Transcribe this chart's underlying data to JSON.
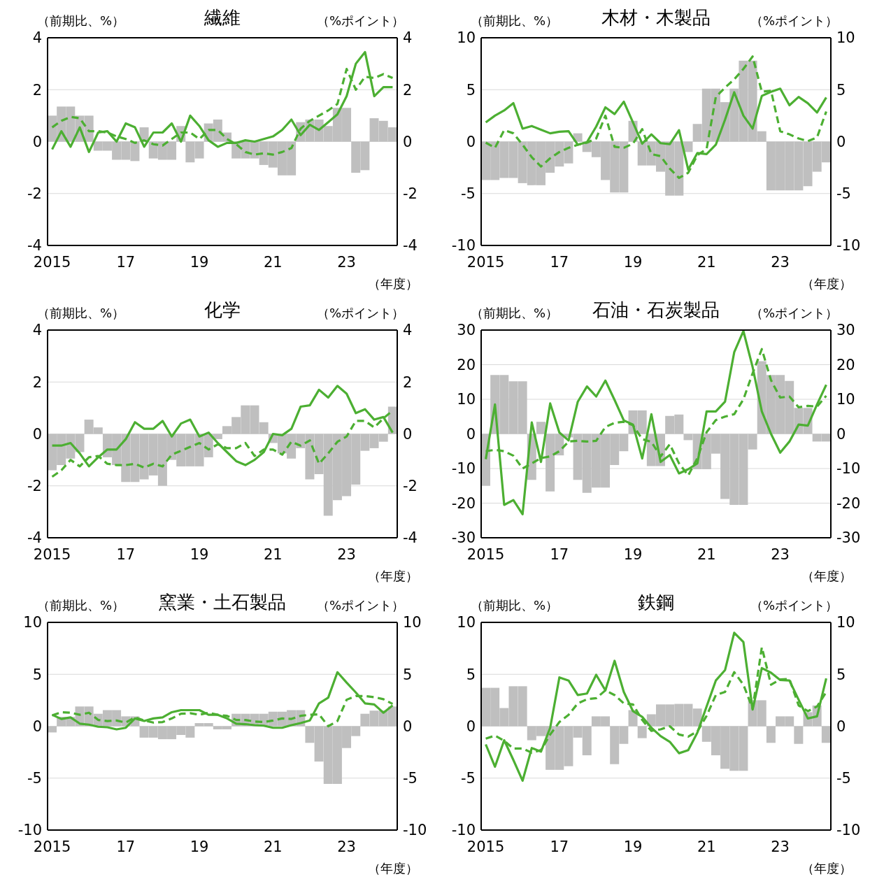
{
  "chart_data": [
    {
      "type": "bar",
      "title": "繊維",
      "ylabel": "（前期比、%）",
      "y2label": "（%ポイント）",
      "xlabel": "（年度）",
      "categories": [
        "2015",
        null,
        null,
        null,
        null,
        null,
        null,
        null,
        "17",
        null,
        null,
        null,
        null,
        null,
        null,
        null,
        "19",
        null,
        null,
        null,
        null,
        null,
        null,
        null,
        "21",
        null,
        null,
        null,
        null,
        null,
        null,
        null,
        "23",
        null,
        null,
        null,
        null,
        null
      ],
      "ylim": [
        -4,
        4
      ],
      "yticks": [
        -4,
        -2,
        0,
        2,
        4
      ],
      "y2lim": [
        -4,
        4
      ],
      "y2ticks": [
        -4,
        -2,
        0,
        2,
        4
      ],
      "grid": "y",
      "marker": "none",
      "series": [
        {
          "color": "#bfbfbf",
          "values": [
            1.0,
            1.35,
            1.35,
            1.0,
            1.0,
            -0.35,
            -0.35,
            -0.7,
            -0.7,
            -0.75,
            0.55,
            -0.65,
            -0.7,
            -0.7,
            0.6,
            -0.8,
            -0.65,
            0.7,
            0.85,
            0.35,
            -0.65,
            -0.65,
            -0.65,
            -0.9,
            -1.0,
            -1.3,
            -1.3,
            0.75,
            0.85,
            0.85,
            0.6,
            1.3,
            1.3,
            -1.2,
            -1.1,
            0.9,
            0.8,
            0.55
          ]
        },
        {
          "type": "line",
          "color": "#4caf32",
          "line_style": "solid",
          "values": [
            -0.3,
            0.4,
            -0.2,
            0.55,
            -0.4,
            0.35,
            0.4,
            0.0,
            0.7,
            0.55,
            -0.2,
            0.35,
            0.35,
            0.7,
            0.0,
            1.0,
            0.6,
            0.05,
            -0.2,
            -0.05,
            -0.05,
            0.05,
            0.0,
            0.1,
            0.2,
            0.45,
            0.85,
            0.25,
            0.65,
            0.45,
            0.75,
            1.05,
            1.75,
            3.0,
            3.45,
            1.75,
            2.1,
            2.1
          ]
        },
        {
          "type": "line",
          "color": "#4caf32",
          "line_style": "dashed",
          "values": [
            0.55,
            0.8,
            0.95,
            0.9,
            0.4,
            0.4,
            0.35,
            0.2,
            0.1,
            -0.05,
            0.05,
            -0.1,
            -0.15,
            0.1,
            0.35,
            0.35,
            0.1,
            0.45,
            0.45,
            0.1,
            -0.1,
            -0.4,
            -0.5,
            -0.45,
            -0.5,
            -0.4,
            -0.25,
            0.5,
            0.8,
            1.0,
            1.2,
            1.45,
            2.8,
            2.0,
            2.5,
            2.45,
            2.6,
            2.45
          ]
        }
      ]
    },
    {
      "type": "bar",
      "title": "木材・木製品",
      "ylabel": "（前期比、%）",
      "y2label": "（%ポイント）",
      "xlabel": "（年度）",
      "categories": [
        "2015",
        null,
        null,
        null,
        null,
        null,
        null,
        null,
        "17",
        null,
        null,
        null,
        null,
        null,
        null,
        null,
        "19",
        null,
        null,
        null,
        null,
        null,
        null,
        null,
        "21",
        null,
        null,
        null,
        null,
        null,
        null,
        null,
        "23",
        null,
        null,
        null,
        null,
        null
      ],
      "ylim": [
        -10,
        10
      ],
      "yticks": [
        -10,
        -5,
        0,
        5,
        10
      ],
      "y2lim": [
        -10,
        10
      ],
      "y2ticks": [
        -10,
        -5,
        0,
        5,
        10
      ],
      "grid": "y",
      "marker": "none",
      "series": [
        {
          "color": "#bfbfbf",
          "values": [
            -3.7,
            -3.7,
            -3.5,
            -3.5,
            -4.0,
            -4.2,
            -4.2,
            -3.0,
            -2.4,
            -2.1,
            0.8,
            -1.0,
            -1.5,
            -3.7,
            -4.9,
            -4.9,
            2.0,
            -2.3,
            -2.3,
            -2.9,
            -5.2,
            -5.2,
            -1.0,
            1.7,
            5.1,
            5.1,
            3.8,
            5.1,
            7.8,
            7.8,
            1.0,
            -4.7,
            -4.7,
            -4.7,
            -4.7,
            -4.3,
            -2.9,
            -2.0
          ]
        },
        {
          "type": "line",
          "color": "#4caf32",
          "line_style": "solid",
          "values": [
            1.85,
            2.5,
            3.0,
            3.7,
            1.25,
            1.5,
            1.15,
            0.8,
            0.95,
            1.0,
            -0.3,
            -0.05,
            1.45,
            3.3,
            2.65,
            3.85,
            1.85,
            -0.2,
            0.7,
            -0.15,
            -0.25,
            1.1,
            -2.7,
            -1.1,
            -1.2,
            -0.3,
            2.1,
            4.75,
            2.5,
            1.25,
            4.4,
            4.8,
            5.1,
            3.5,
            4.3,
            3.7,
            2.8,
            4.25
          ]
        },
        {
          "type": "line",
          "color": "#4caf32",
          "line_style": "dashed",
          "values": [
            -0.1,
            -0.6,
            1.1,
            0.8,
            -0.3,
            -1.5,
            -2.4,
            -1.6,
            -1.0,
            -0.6,
            -0.3,
            -0.1,
            0.3,
            2.5,
            -0.5,
            -0.6,
            -0.2,
            1.2,
            -1.2,
            -1.4,
            -2.6,
            -3.5,
            -3.0,
            -1.3,
            -0.7,
            4.3,
            5.2,
            6.0,
            7.0,
            8.2,
            4.8,
            4.9,
            1.0,
            0.7,
            0.3,
            0.05,
            0.4,
            2.9
          ]
        }
      ]
    },
    {
      "type": "bar",
      "title": "化学",
      "ylabel": "（前期比、%）",
      "y2label": "（%ポイント）",
      "xlabel": "（年度）",
      "categories": [
        "2015",
        null,
        null,
        null,
        null,
        null,
        null,
        null,
        "17",
        null,
        null,
        null,
        null,
        null,
        null,
        null,
        "19",
        null,
        null,
        null,
        null,
        null,
        null,
        null,
        "21",
        null,
        null,
        null,
        null,
        null,
        null,
        null,
        "23",
        null,
        null,
        null,
        null,
        null
      ],
      "ylim": [
        -4,
        4
      ],
      "yticks": [
        -4,
        -2,
        0,
        2,
        4
      ],
      "y2lim": [
        -4,
        4
      ],
      "y2ticks": [
        -4,
        -2,
        0,
        2,
        4
      ],
      "grid": "y",
      "marker": "none",
      "series": [
        {
          "color": "#bfbfbf",
          "values": [
            -1.4,
            -1.2,
            -0.95,
            -0.7,
            0.55,
            0.25,
            -0.9,
            -1.2,
            -1.85,
            -1.85,
            -1.75,
            -1.6,
            -2.0,
            -1.0,
            -1.25,
            -1.25,
            -1.25,
            -0.9,
            -0.2,
            0.3,
            0.65,
            1.1,
            1.1,
            0.45,
            -0.35,
            -0.75,
            -0.95,
            -0.55,
            -1.75,
            -1.55,
            -3.15,
            -2.55,
            -2.4,
            -1.95,
            -0.65,
            -0.55,
            -0.3,
            1.05
          ]
        },
        {
          "type": "line",
          "color": "#4caf32",
          "line_style": "solid",
          "values": [
            -0.45,
            -0.45,
            -0.35,
            -0.75,
            -1.25,
            -0.9,
            -0.6,
            -0.6,
            -0.2,
            0.45,
            0.2,
            0.2,
            0.5,
            -0.1,
            0.4,
            0.55,
            -0.1,
            0.05,
            -0.35,
            -0.7,
            -1.05,
            -1.2,
            -1.0,
            -0.7,
            0.0,
            -0.05,
            0.2,
            1.05,
            1.1,
            1.7,
            1.4,
            1.85,
            1.55,
            0.8,
            0.95,
            0.55,
            0.65,
            0.05
          ]
        },
        {
          "type": "line",
          "color": "#4caf32",
          "line_style": "dashed",
          "values": [
            -1.65,
            -1.4,
            -1.0,
            -1.25,
            -0.9,
            -0.85,
            -1.15,
            -1.2,
            -1.2,
            -1.15,
            -1.3,
            -1.15,
            -1.25,
            -0.8,
            -0.65,
            -0.5,
            -0.35,
            -0.6,
            -0.4,
            -0.55,
            -0.55,
            -0.35,
            -0.85,
            -0.6,
            -0.6,
            -0.8,
            -0.3,
            -0.45,
            -0.25,
            -1.15,
            -0.75,
            -0.3,
            -0.1,
            0.5,
            0.5,
            0.25,
            0.6,
            0.9
          ]
        }
      ]
    },
    {
      "type": "bar",
      "title": "石油・石炭製品",
      "ylabel": "（前期比、%）",
      "y2label": "（%ポイント）",
      "xlabel": "（年度）",
      "categories": [
        "2015",
        null,
        null,
        null,
        null,
        null,
        null,
        null,
        "17",
        null,
        null,
        null,
        null,
        null,
        null,
        null,
        "19",
        null,
        null,
        null,
        null,
        null,
        null,
        null,
        "21",
        null,
        null,
        null,
        null,
        null,
        null,
        null,
        "23",
        null,
        null,
        null,
        null,
        null
      ],
      "ylim": [
        -30,
        30
      ],
      "yticks": [
        -30,
        -20,
        -10,
        0,
        10,
        20,
        30
      ],
      "y2lim": [
        -30,
        30
      ],
      "y2ticks": [
        -30,
        -20,
        -10,
        0,
        10,
        20,
        30
      ],
      "grid": "y",
      "marker": "none",
      "series": [
        {
          "color": "#bfbfbf",
          "values": [
            -15,
            17,
            17,
            15.2,
            15.2,
            -13.3,
            3.5,
            -16.6,
            -6.2,
            -1,
            -13.3,
            -17,
            -15.5,
            -15.5,
            -9,
            -5,
            6.8,
            6.8,
            -9.3,
            -9.3,
            5.2,
            5.6,
            -1.8,
            -10.2,
            -10.2,
            -5.7,
            -18.8,
            -20.5,
            -20.5,
            -4.5,
            21,
            17,
            17,
            15.3,
            7.5,
            7.5,
            -2.2,
            -2.2
          ]
        },
        {
          "type": "line",
          "color": "#4caf32",
          "line_style": "solid",
          "values": [
            -7.3,
            8.5,
            -20.5,
            -19.1,
            -23.2,
            3.3,
            -8.1,
            8.8,
            0.4,
            -1.9,
            9.3,
            13.7,
            10.8,
            15.4,
            9.8,
            3.9,
            2.7,
            -7.1,
            5.7,
            -8.1,
            -6.1,
            -11.4,
            -10.2,
            -8.5,
            6.5,
            6.5,
            9.3,
            23.6,
            29.7,
            19.3,
            6.5,
            0.0,
            -5.4,
            -2.2,
            2.7,
            2.4,
            8.5,
            14.2
          ]
        },
        {
          "type": "line",
          "color": "#4caf32",
          "line_style": "dashed",
          "values": [
            -5,
            -4.6,
            -5,
            -6.3,
            -10,
            -8.5,
            -7,
            -6.5,
            -5,
            -2.2,
            -2,
            -2.2,
            -2,
            2,
            3.2,
            3.5,
            2.5,
            -1.5,
            -2.3,
            -6.5,
            -3,
            -8.5,
            -12,
            -7,
            0.5,
            4,
            5,
            5.7,
            10,
            17.5,
            24.5,
            15.5,
            10.5,
            10.8,
            7.7,
            8.1,
            7.9,
            11
          ]
        }
      ]
    },
    {
      "type": "bar",
      "title": "窯業・土石製品",
      "ylabel": "（前期比、%）",
      "y2label": "（%ポイント）",
      "xlabel": "（年度）",
      "categories": [
        "2015",
        null,
        null,
        null,
        null,
        null,
        null,
        null,
        "17",
        null,
        null,
        null,
        null,
        null,
        null,
        null,
        "19",
        null,
        null,
        null,
        null,
        null,
        null,
        null,
        "21",
        null,
        null,
        null,
        null,
        null,
        null,
        null,
        "23",
        null,
        null,
        null,
        null,
        null
      ],
      "ylim": [
        -10,
        10
      ],
      "yticks": [
        -10,
        -5,
        0,
        5,
        10
      ],
      "y2lim": [
        -10,
        10
      ],
      "y2ticks": [
        -10,
        -5,
        0,
        5,
        10
      ],
      "grid": "y",
      "marker": "none",
      "series": [
        {
          "color": "#bfbfbf",
          "values": [
            -0.6,
            0.9,
            0.9,
            1.9,
            1.9,
            1.2,
            1.55,
            1.55,
            0.95,
            0.95,
            -1.1,
            -1.1,
            -1.25,
            -1.25,
            -0.85,
            -1.1,
            0.3,
            0.3,
            -0.3,
            -0.3,
            1.2,
            1.2,
            1.2,
            1.2,
            1.4,
            1.4,
            1.55,
            1.55,
            -1.6,
            -3.4,
            -5.55,
            -5.55,
            -2.1,
            -0.95,
            1.2,
            1.5,
            1.5,
            1.9
          ]
        },
        {
          "type": "line",
          "color": "#4caf32",
          "line_style": "solid",
          "values": [
            1.1,
            0.7,
            0.85,
            0.25,
            0.15,
            -0.05,
            -0.1,
            -0.3,
            -0.15,
            0.75,
            0.5,
            0.75,
            0.85,
            1.35,
            1.55,
            1.55,
            1.55,
            1.1,
            1.1,
            0.75,
            0.25,
            0.2,
            0.1,
            0.05,
            -0.15,
            -0.15,
            0.1,
            0.3,
            0.55,
            2.2,
            2.75,
            5.2,
            4.2,
            3.25,
            2.2,
            2.1,
            1.3,
            2.0
          ]
        },
        {
          "type": "line",
          "color": "#4caf32",
          "line_style": "dashed",
          "values": [
            1.05,
            1.35,
            1.3,
            1.1,
            1.3,
            0.6,
            0.5,
            0.55,
            0.35,
            0.85,
            0.55,
            0.35,
            0.4,
            0.75,
            1.2,
            1.25,
            1.1,
            1.3,
            1.1,
            1.0,
            0.6,
            0.6,
            0.45,
            0.4,
            0.55,
            0.75,
            0.7,
            1.0,
            1.1,
            1.15,
            0.0,
            0.5,
            2.55,
            2.9,
            2.9,
            2.8,
            2.6,
            2.15
          ]
        }
      ]
    },
    {
      "type": "bar",
      "title": "鉄鋼",
      "ylabel": "（前期比、%）",
      "y2label": "（%ポイント）",
      "xlabel": "（年度）",
      "categories": [
        "2015",
        null,
        null,
        null,
        null,
        null,
        null,
        null,
        "17",
        null,
        null,
        null,
        null,
        null,
        null,
        null,
        "19",
        null,
        null,
        null,
        null,
        null,
        null,
        null,
        "21",
        null,
        null,
        null,
        null,
        null,
        null,
        null,
        "23",
        null,
        null,
        null,
        null,
        null
      ],
      "ylim": [
        -10,
        10
      ],
      "yticks": [
        -10,
        -5,
        0,
        5,
        10
      ],
      "y2lim": [
        -10,
        10
      ],
      "y2ticks": [
        -10,
        -5,
        0,
        5,
        10
      ],
      "grid": "y",
      "marker": "none",
      "series": [
        {
          "color": "#bfbfbf",
          "values": [
            3.7,
            3.7,
            1.75,
            3.85,
            3.85,
            -1.35,
            -0.95,
            -4.2,
            -4.2,
            -3.85,
            -1.1,
            -2.8,
            0.95,
            0.95,
            -3.65,
            -1.7,
            1.55,
            -1.15,
            1.15,
            2.1,
            2.1,
            2.15,
            2.15,
            1.7,
            -1.5,
            -2.8,
            -4.1,
            -4.3,
            -4.3,
            2.5,
            2.5,
            -1.6,
            0.95,
            0.95,
            -1.7,
            1.35,
            2.0,
            -1.6
          ]
        },
        {
          "type": "line",
          "color": "#4caf32",
          "line_style": "solid",
          "values": [
            -1.75,
            -3.9,
            -1.35,
            -3.25,
            -5.25,
            -2.1,
            -2.45,
            -0.15,
            4.7,
            4.4,
            3.0,
            3.15,
            4.95,
            3.45,
            6.3,
            3.3,
            1.45,
            0.9,
            -0.15,
            -0.95,
            -1.5,
            -2.6,
            -2.3,
            -0.6,
            1.9,
            4.4,
            5.4,
            9.0,
            8.1,
            1.6,
            5.6,
            5.15,
            4.45,
            4.4,
            2.55,
            0.75,
            0.95,
            4.6
          ]
        },
        {
          "type": "line",
          "color": "#4caf32",
          "line_style": "dashed",
          "values": [
            -1.2,
            -0.9,
            -1.4,
            -2.15,
            -2.15,
            -2.55,
            -2.3,
            -0.8,
            0.4,
            1.1,
            2.2,
            2.6,
            2.7,
            3.45,
            3.0,
            2.2,
            2.1,
            0.6,
            -0.45,
            -0.3,
            0.0,
            -0.8,
            -1.0,
            -0.5,
            1.0,
            3.0,
            3.3,
            5.2,
            4.0,
            1.7,
            7.6,
            4.0,
            4.5,
            4.55,
            2.0,
            1.45,
            1.9,
            3.3
          ]
        }
      ]
    }
  ]
}
